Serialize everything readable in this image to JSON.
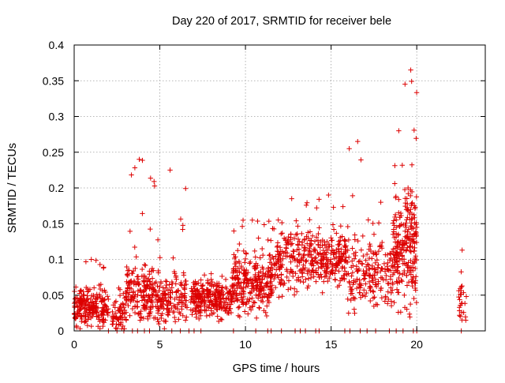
{
  "chart_data": {
    "type": "scatter",
    "title": "Day 220 of 2017, SRMTID for receiver bele",
    "xlabel": "GPS time / hours",
    "ylabel": "SRMTID / TECUs",
    "xlim": [
      0,
      24
    ],
    "ylim": [
      0,
      0.4
    ],
    "xticks": [
      0,
      5,
      10,
      15,
      20
    ],
    "yticks": [
      0,
      0.05,
      0.1,
      0.15,
      0.2,
      0.25,
      0.3,
      0.35,
      0.4
    ],
    "xtick_labels": [
      "0",
      "5",
      "10",
      "15",
      "20"
    ],
    "ytick_labels": [
      "0",
      "0.05",
      "0.1",
      "0.15",
      "0.2",
      "0.25",
      "0.3",
      "0.35",
      "0.4"
    ],
    "grid": true,
    "marker": "+",
    "color": "#dd0000",
    "series": [
      {
        "name": "SRMTID",
        "clusters": [
          {
            "x_range": [
              0.0,
              2.0
            ],
            "base": 0.035,
            "spread": 0.02,
            "peak": 0.1,
            "count": 230
          },
          {
            "x_range": [
              2.2,
              3.0
            ],
            "base": 0.02,
            "spread": 0.015,
            "peak": 0.06,
            "count": 60
          },
          {
            "x_range": [
              3.0,
              4.6
            ],
            "base": 0.055,
            "spread": 0.03,
            "peak": 0.24,
            "count": 170
          },
          {
            "x_range": [
              4.6,
              6.6
            ],
            "base": 0.045,
            "spread": 0.025,
            "peak": 0.225,
            "count": 170
          },
          {
            "x_range": [
              6.8,
              9.2
            ],
            "base": 0.045,
            "spread": 0.02,
            "peak": 0.08,
            "count": 260
          },
          {
            "x_range": [
              9.2,
              11.6
            ],
            "base": 0.065,
            "spread": 0.03,
            "peak": 0.155,
            "count": 280
          },
          {
            "x_range": [
              11.6,
              13.8
            ],
            "base": 0.1,
            "spread": 0.035,
            "peak": 0.185,
            "count": 180
          },
          {
            "x_range": [
              13.8,
              15.9
            ],
            "base": 0.1,
            "spread": 0.03,
            "peak": 0.19,
            "count": 210
          },
          {
            "x_range": [
              15.9,
              17.2
            ],
            "base": 0.075,
            "spread": 0.035,
            "peak": 0.265,
            "count": 90
          },
          {
            "x_range": [
              17.2,
              18.6
            ],
            "base": 0.075,
            "spread": 0.035,
            "peak": 0.18,
            "count": 110
          },
          {
            "x_range": [
              18.6,
              19.3
            ],
            "base": 0.11,
            "spread": 0.05,
            "peak": 0.28,
            "count": 110
          },
          {
            "x_range": [
              19.3,
              20.0
            ],
            "base": 0.12,
            "spread": 0.07,
            "peak": 0.365,
            "count": 140
          },
          {
            "x_range": [
              22.4,
              22.9
            ],
            "base": 0.045,
            "spread": 0.025,
            "peak": 0.113,
            "count": 25
          }
        ],
        "zero_points": [
          2.0,
          2.5,
          2.9,
          3.4,
          3.7,
          4.1,
          4.4,
          5.7,
          6.2,
          6.7,
          7.0,
          7.4,
          9.3,
          10.6,
          11.3,
          11.5,
          12.1,
          12.9,
          13.2,
          13.5,
          14.1,
          14.3,
          15.8,
          16.1,
          16.7,
          17.1,
          17.6,
          18.4,
          18.8,
          19.2,
          19.8,
          20.0,
          22.6
        ]
      }
    ]
  }
}
